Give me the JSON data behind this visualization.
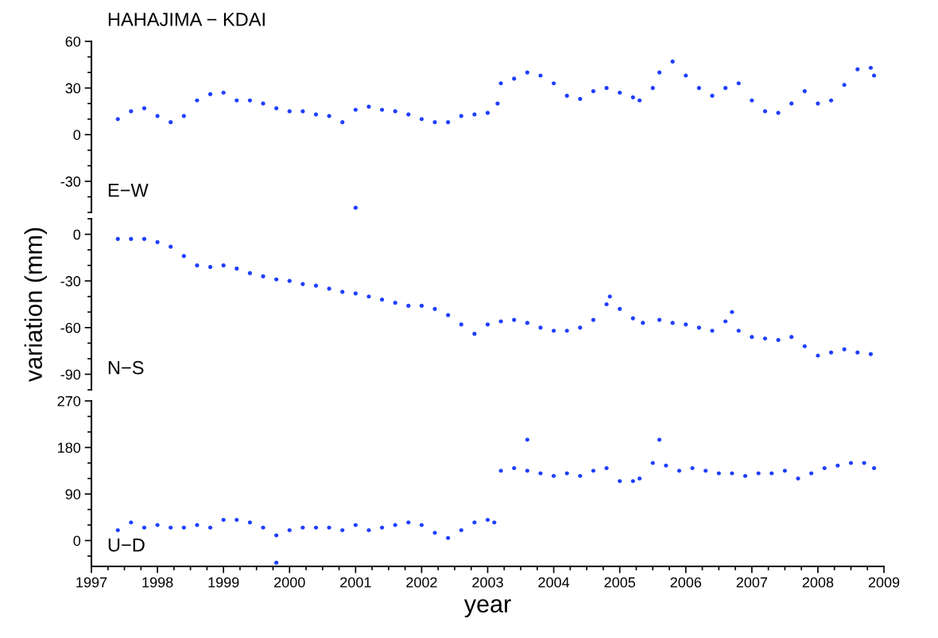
{
  "chart_data": [
    {
      "type": "scatter",
      "title": "HAHAJIMA − KDAI",
      "annotations": [
        "E−W"
      ],
      "marker": "circle",
      "tick_labels": "y",
      "xlim": [
        1997,
        2009
      ],
      "ylim": [
        -50,
        60
      ],
      "yticks": [
        {
          "value": -50,
          "label": null
        },
        {
          "value": -40,
          "label": null
        },
        -30,
        {
          "value": -20,
          "label": null
        },
        {
          "value": -10,
          "label": null
        },
        0,
        {
          "value": 10,
          "label": null
        },
        {
          "value": 20,
          "label": null
        },
        30,
        {
          "value": 40,
          "label": null
        },
        {
          "value": 50,
          "label": null
        },
        60
      ],
      "series": [
        {
          "color": "#1f3fff",
          "x": [
            1997.4,
            1997.6,
            1997.8,
            1998.0,
            1998.2,
            1998.4,
            1998.6,
            1998.8,
            1999.0,
            1999.2,
            1999.4,
            1999.6,
            1999.8,
            2000.0,
            2000.2,
            2000.4,
            2000.6,
            2000.8,
            2001.0,
            2001.0,
            2001.2,
            2001.4,
            2001.6,
            2001.8,
            2002.0,
            2002.2,
            2002.4,
            2002.6,
            2002.8,
            2003.0,
            2003.15,
            2003.2,
            2003.4,
            2003.6,
            2003.8,
            2004.0,
            2004.2,
            2004.4,
            2004.6,
            2004.8,
            2005.0,
            2005.2,
            2005.3,
            2005.5,
            2005.6,
            2005.8,
            2006.0,
            2006.2,
            2006.4,
            2006.6,
            2006.8,
            2007.0,
            2007.2,
            2007.4,
            2007.6,
            2007.8,
            2008.0,
            2008.2,
            2008.4,
            2008.6,
            2008.8,
            2008.85
          ],
          "values": [
            10,
            15,
            17,
            12,
            8,
            12,
            22,
            26,
            27,
            22,
            22,
            20,
            17,
            15,
            15,
            13,
            12,
            8,
            16,
            -47,
            18,
            16,
            15,
            13,
            10,
            8,
            8,
            12,
            13,
            14,
            20,
            33,
            36,
            40,
            38,
            33,
            25,
            23,
            28,
            30,
            27,
            24,
            22,
            30,
            40,
            47,
            38,
            30,
            25,
            30,
            33,
            22,
            15,
            14,
            20,
            28,
            20,
            22,
            32,
            42,
            43,
            38
          ]
        }
      ]
    },
    {
      "type": "scatter",
      "ylabel": "variation (mm)",
      "annotations": [
        "N−S"
      ],
      "marker": "circle",
      "tick_labels": "y",
      "xlim": [
        1997,
        2009
      ],
      "ylim": [
        -100,
        10
      ],
      "yticks": [
        {
          "value": -100,
          "label": null
        },
        -90,
        {
          "value": -80,
          "label": null
        },
        {
          "value": -70,
          "label": null
        },
        -60,
        {
          "value": -50,
          "label": null
        },
        {
          "value": -40,
          "label": null
        },
        -30,
        {
          "value": -20,
          "label": null
        },
        {
          "value": -10,
          "label": null
        },
        0,
        {
          "value": 10,
          "label": null
        }
      ],
      "series": [
        {
          "color": "#1f3fff",
          "x": [
            1997.4,
            1997.6,
            1997.8,
            1998.0,
            1998.2,
            1998.4,
            1998.6,
            1998.8,
            1999.0,
            1999.2,
            1999.4,
            1999.6,
            1999.8,
            2000.0,
            2000.2,
            2000.4,
            2000.6,
            2000.8,
            2001.0,
            2001.2,
            2001.4,
            2001.6,
            2001.8,
            2002.0,
            2002.2,
            2002.4,
            2002.6,
            2002.8,
            2003.0,
            2003.2,
            2003.4,
            2003.6,
            2003.8,
            2004.0,
            2004.2,
            2004.4,
            2004.6,
            2004.8,
            2004.85,
            2005.0,
            2005.2,
            2005.35,
            2005.6,
            2005.8,
            2006.0,
            2006.2,
            2006.4,
            2006.6,
            2006.7,
            2006.8,
            2007.0,
            2007.2,
            2007.4,
            2007.6,
            2007.8,
            2008.0,
            2008.2,
            2008.4,
            2008.6,
            2008.8
          ],
          "values": [
            -3,
            -3,
            -3,
            -5,
            -8,
            -14,
            -20,
            -21,
            -20,
            -22,
            -25,
            -27,
            -29,
            -30,
            -32,
            -33,
            -35,
            -37,
            -38,
            -40,
            -42,
            -44,
            -46,
            -46,
            -48,
            -52,
            -58,
            -64,
            -58,
            -56,
            -55,
            -57,
            -60,
            -62,
            -62,
            -60,
            -55,
            -45,
            -40,
            -48,
            -54,
            -57,
            -55,
            -57,
            -58,
            -60,
            -62,
            -56,
            -50,
            -62,
            -66,
            -67,
            -68,
            -66,
            -72,
            -78,
            -76,
            -74,
            -76,
            -77
          ]
        }
      ]
    },
    {
      "type": "scatter",
      "xlabel": "year",
      "annotations": [
        "U−D"
      ],
      "marker": "circle",
      "xlim": [
        1997,
        2009
      ],
      "ylim": [
        -50,
        270
      ],
      "xticks": [
        1997,
        {
          "value": 1997.25,
          "label": null
        },
        {
          "value": 1997.5,
          "label": null
        },
        {
          "value": 1997.75,
          "label": null
        },
        1998,
        {
          "value": 1998.25,
          "label": null
        },
        {
          "value": 1998.5,
          "label": null
        },
        {
          "value": 1998.75,
          "label": null
        },
        1999,
        {
          "value": 1999.25,
          "label": null
        },
        {
          "value": 1999.5,
          "label": null
        },
        {
          "value": 1999.75,
          "label": null
        },
        2000,
        {
          "value": 2000.25,
          "label": null
        },
        {
          "value": 2000.5,
          "label": null
        },
        {
          "value": 2000.75,
          "label": null
        },
        2001,
        {
          "value": 2001.25,
          "label": null
        },
        {
          "value": 2001.5,
          "label": null
        },
        {
          "value": 2001.75,
          "label": null
        },
        2002,
        {
          "value": 2002.25,
          "label": null
        },
        {
          "value": 2002.5,
          "label": null
        },
        {
          "value": 2002.75,
          "label": null
        },
        2003,
        {
          "value": 2003.25,
          "label": null
        },
        {
          "value": 2003.5,
          "label": null
        },
        {
          "value": 2003.75,
          "label": null
        },
        2004,
        {
          "value": 2004.25,
          "label": null
        },
        {
          "value": 2004.5,
          "label": null
        },
        {
          "value": 2004.75,
          "label": null
        },
        2005,
        {
          "value": 2005.25,
          "label": null
        },
        {
          "value": 2005.5,
          "label": null
        },
        {
          "value": 2005.75,
          "label": null
        },
        2006,
        {
          "value": 2006.25,
          "label": null
        },
        {
          "value": 2006.5,
          "label": null
        },
        {
          "value": 2006.75,
          "label": null
        },
        2007,
        {
          "value": 2007.25,
          "label": null
        },
        {
          "value": 2007.5,
          "label": null
        },
        {
          "value": 2007.75,
          "label": null
        },
        2008,
        {
          "value": 2008.25,
          "label": null
        },
        {
          "value": 2008.5,
          "label": null
        },
        {
          "value": 2008.75,
          "label": null
        },
        2009
      ],
      "yticks": [
        {
          "value": -30,
          "label": null
        },
        0,
        {
          "value": 30,
          "label": null
        },
        {
          "value": 60,
          "label": null
        },
        90,
        {
          "value": 120,
          "label": null
        },
        {
          "value": 150,
          "label": null
        },
        180,
        {
          "value": 210,
          "label": null
        },
        {
          "value": 240,
          "label": null
        },
        270
      ],
      "series": [
        {
          "color": "#1f3fff",
          "x": [
            1997.4,
            1997.6,
            1997.8,
            1998.0,
            1998.2,
            1998.4,
            1998.6,
            1998.8,
            1999.0,
            1999.2,
            1999.4,
            1999.6,
            1999.8,
            1999.8,
            2000.0,
            2000.2,
            2000.4,
            2000.6,
            2000.8,
            2001.0,
            2001.2,
            2001.4,
            2001.6,
            2001.8,
            2002.0,
            2002.2,
            2002.4,
            2002.6,
            2002.8,
            2003.0,
            2003.1,
            2003.2,
            2003.4,
            2003.6,
            2003.6,
            2003.8,
            2004.0,
            2004.2,
            2004.4,
            2004.6,
            2004.8,
            2005.0,
            2005.2,
            2005.3,
            2005.5,
            2005.6,
            2005.7,
            2005.9,
            2006.1,
            2006.3,
            2006.5,
            2006.7,
            2006.9,
            2007.1,
            2007.3,
            2007.5,
            2007.7,
            2007.9,
            2008.1,
            2008.3,
            2008.5,
            2008.7,
            2008.85
          ],
          "values": [
            20,
            35,
            25,
            30,
            25,
            25,
            30,
            25,
            40,
            40,
            35,
            25,
            10,
            -43,
            20,
            25,
            25,
            25,
            20,
            30,
            20,
            25,
            30,
            35,
            30,
            15,
            5,
            20,
            35,
            40,
            35,
            135,
            140,
            135,
            195,
            130,
            125,
            130,
            125,
            135,
            140,
            115,
            115,
            120,
            150,
            195,
            145,
            135,
            140,
            135,
            130,
            130,
            125,
            130,
            130,
            135,
            120,
            130,
            140,
            145,
            150,
            150,
            140
          ]
        }
      ]
    }
  ]
}
